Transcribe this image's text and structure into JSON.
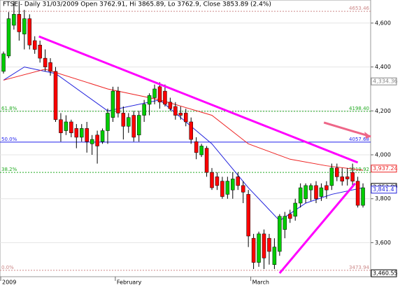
{
  "chart_data": {
    "type": "candlestick",
    "title": "FTSE - Daily 31/03/2009 Open 3762.91, Hi 3865.89, Lo 3762.9, Close 3853.89 (2.4%)",
    "ylim": [
      3445,
      4705
    ],
    "yticks": [
      {
        "value": 3600,
        "label": "3,600"
      },
      {
        "value": 3800,
        "label": "3,800"
      },
      {
        "value": 4000,
        "label": "4,000"
      },
      {
        "value": 4200,
        "label": "4,200"
      },
      {
        "value": 4400,
        "label": "4,400"
      },
      {
        "value": 4600,
        "label": "4,600"
      }
    ],
    "grid": true,
    "up_color": "#00cc00",
    "down_color": "#ff0000",
    "categories": [
      "2009",
      null,
      null,
      null,
      null,
      null,
      null,
      null,
      null,
      null,
      null,
      null,
      null,
      null,
      null,
      null,
      null,
      null,
      null,
      null,
      null,
      null,
      "February",
      null,
      null,
      null,
      null,
      null,
      null,
      null,
      null,
      null,
      null,
      null,
      null,
      null,
      null,
      null,
      null,
      null,
      null,
      null,
      null,
      null,
      null,
      null,
      null,
      null,
      "March",
      null,
      null,
      null,
      null,
      null,
      null,
      null,
      null,
      null,
      null,
      null,
      null,
      null,
      null,
      null,
      null,
      null,
      null,
      null,
      null,
      null
    ],
    "candles": [
      [
        4380,
        4470,
        4370,
        4460
      ],
      [
        4450,
        4650,
        4440,
        4620
      ],
      [
        4590,
        4700,
        4570,
        4640
      ],
      [
        4640,
        4700,
        4520,
        4560
      ],
      [
        4550,
        4660,
        4480,
        4620
      ],
      [
        4620,
        4640,
        4480,
        4500
      ],
      [
        4520,
        4540,
        4460,
        4480
      ],
      [
        4500,
        4520,
        4420,
        4440
      ],
      [
        4440,
        4480,
        4380,
        4400
      ],
      [
        4420,
        4440,
        4360,
        4380
      ],
      [
        4380,
        4400,
        4150,
        4160
      ],
      [
        4160,
        4190,
        4060,
        4100
      ],
      [
        4110,
        4180,
        4090,
        4150
      ],
      [
        4150,
        4160,
        4080,
        4100
      ],
      [
        4120,
        4140,
        4030,
        4080
      ],
      [
        4080,
        4140,
        4060,
        4120
      ],
      [
        4120,
        4150,
        4010,
        4060
      ],
      [
        4050,
        4090,
        4000,
        4070
      ],
      [
        4090,
        4110,
        3960,
        4040
      ],
      [
        4060,
        4120,
        4050,
        4110
      ],
      [
        4110,
        4210,
        4050,
        4190
      ],
      [
        4170,
        4310,
        4150,
        4290
      ],
      [
        4290,
        4310,
        4170,
        4190
      ],
      [
        4190,
        4220,
        4070,
        4130
      ],
      [
        4130,
        4190,
        4100,
        4170
      ],
      [
        4180,
        4200,
        4060,
        4080
      ],
      [
        4090,
        4200,
        4060,
        4180
      ],
      [
        4180,
        4250,
        4150,
        4230
      ],
      [
        4230,
        4280,
        4180,
        4270
      ],
      [
        4260,
        4320,
        4230,
        4300
      ],
      [
        4310,
        4330,
        4210,
        4240
      ],
      [
        4290,
        4320,
        4220,
        4230
      ],
      [
        4240,
        4260,
        4200,
        4210
      ],
      [
        4220,
        4240,
        4160,
        4180
      ],
      [
        4190,
        4220,
        4160,
        4180
      ],
      [
        4190,
        4210,
        4130,
        4150
      ],
      [
        4150,
        4170,
        4050,
        4070
      ],
      [
        4060,
        4080,
        3980,
        4010
      ],
      [
        4000,
        4050,
        3990,
        4040
      ],
      [
        4030,
        4040,
        3900,
        3920
      ],
      [
        3920,
        3940,
        3840,
        3850
      ],
      [
        3900,
        3920,
        3840,
        3860
      ],
      [
        3880,
        3900,
        3800,
        3810
      ],
      [
        3820,
        3900,
        3800,
        3880
      ],
      [
        3840,
        3920,
        3800,
        3890
      ],
      [
        3900,
        3920,
        3840,
        3860
      ],
      [
        3860,
        3880,
        3780,
        3830
      ],
      [
        3820,
        3840,
        3580,
        3630
      ],
      [
        3620,
        3640,
        3480,
        3510
      ],
      [
        3510,
        3650,
        3490,
        3640
      ],
      [
        3640,
        3660,
        3480,
        3530
      ],
      [
        3620,
        3640,
        3500,
        3560
      ],
      [
        3500,
        3620,
        3480,
        3580
      ],
      [
        3560,
        3730,
        3540,
        3720
      ],
      [
        3660,
        3740,
        3620,
        3720
      ],
      [
        3730,
        3750,
        3690,
        3710
      ],
      [
        3720,
        3800,
        3700,
        3780
      ],
      [
        3780,
        3870,
        3760,
        3850
      ],
      [
        3800,
        3870,
        3780,
        3860
      ],
      [
        3840,
        3870,
        3790,
        3860
      ],
      [
        3860,
        3880,
        3780,
        3800
      ],
      [
        3810,
        3870,
        3790,
        3850
      ],
      [
        3860,
        3880,
        3800,
        3840
      ],
      [
        3860,
        3960,
        3840,
        3940
      ],
      [
        3940,
        3960,
        3880,
        3900
      ],
      [
        3900,
        3940,
        3860,
        3880
      ],
      [
        3900,
        3940,
        3860,
        3890
      ],
      [
        3920,
        3960,
        3850,
        3880
      ],
      [
        3880,
        3900,
        3760,
        3770
      ],
      [
        3770,
        3870,
        3760,
        3850
      ]
    ],
    "lines": [
      {
        "color": "#2222dd",
        "x": [
          0,
          4,
          10,
          20,
          30,
          40,
          47,
          53,
          58,
          63,
          69
        ],
        "values": [
          4340,
          4400,
          4370,
          4200,
          4250,
          4050,
          3850,
          3700,
          3780,
          3820,
          3850
        ]
      },
      {
        "color": "#ee2222",
        "x": [
          0,
          8,
          20,
          30,
          40,
          47,
          55,
          62,
          69
        ],
        "values": [
          4340,
          4390,
          4300,
          4250,
          4180,
          4050,
          3980,
          3950,
          3930
        ]
      }
    ],
    "trendlines": [
      {
        "color": "#ff00ff",
        "x": [
          6.8,
          68
        ],
        "values": [
          4539,
          3965
        ]
      },
      {
        "color": "#ff00ff",
        "x": [
          53,
          67.5
        ],
        "values": [
          3461,
          3870
        ]
      }
    ],
    "arrow": {
      "color": "#ee6688",
      "x": [
        61.5,
        70.5
      ],
      "values": [
        4147,
        4083
      ]
    },
    "fib_levels": [
      {
        "price": 4653.46,
        "price_label": "4653.46",
        "color": "#cc8888"
      },
      {
        "percent": 61.8,
        "percent_label": "61.8%",
        "price": 4198.4,
        "price_label": "4198.40",
        "color": "#22aa22"
      },
      {
        "percent": 50.0,
        "percent_label": "50.0%",
        "price": 4057.68,
        "price_label": "4057.68",
        "color": "#2222ee"
      },
      {
        "percent": 38.2,
        "percent_label": "38.2%",
        "price": 3919.92,
        "price_label": "3919.92",
        "color": "#22aa22"
      },
      {
        "percent": 0.0,
        "percent_label": "0.0%",
        "price": 3473.94,
        "price_label": "3473.94",
        "color": "#cc8888"
      }
    ],
    "price_labels": [
      {
        "value": 4334.36,
        "label": "4,334.36",
        "color": "#888888"
      },
      {
        "value": 3937.24,
        "label": "3,937.24",
        "color": "#ee2222"
      },
      {
        "value": 3853.89,
        "label": "3,853.89",
        "color": "#000000"
      },
      {
        "value": 3841.4,
        "label": "3,841.4",
        "color": "#2222dd"
      },
      {
        "value": 3460.55,
        "label": "3,460.55",
        "color": "#000000"
      }
    ]
  }
}
